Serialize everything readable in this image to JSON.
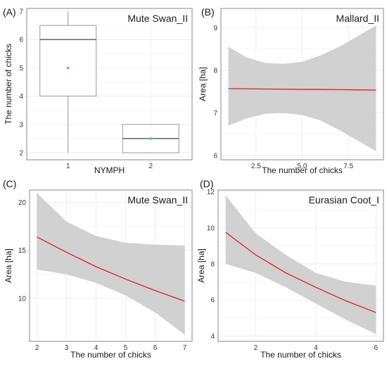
{
  "chart_data": [
    {
      "panel": "(A)",
      "type": "box",
      "title": "Mute Swan_II",
      "xlabel": "NYMPH",
      "ylabel": "The number of chicks",
      "categories": [
        "1",
        "2"
      ],
      "ylim": [
        1.75,
        7.1
      ],
      "yticks": [
        2,
        3,
        4,
        5,
        6,
        7
      ],
      "boxes": [
        {
          "category": "1",
          "min": 2,
          "q1": 4,
          "median": 6,
          "q3": 6.5,
          "max": 7,
          "mean": 5
        },
        {
          "category": "2",
          "min": 2,
          "q1": 2,
          "median": 2.5,
          "q3": 3,
          "max": 3,
          "mean": 2.5
        }
      ],
      "colors": {
        "mean": "#33e633",
        "box": "#999999"
      }
    },
    {
      "panel": "(B)",
      "type": "line",
      "title": "Mallard_II",
      "xlabel": "The number of chicks",
      "ylabel": "Area [ha]",
      "xlim": [
        0.6,
        9.4
      ],
      "ylim": [
        5.9,
        9.45
      ],
      "xticks": [
        2.5,
        5.0,
        7.5
      ],
      "xtick_labels": [
        "2.5",
        "5.0",
        "7.5"
      ],
      "yticks": [
        6,
        7,
        8,
        9
      ],
      "series": [
        {
          "x": [
            1,
            2,
            3,
            4,
            5,
            6,
            7,
            8,
            9
          ],
          "values": [
            7.57,
            7.565,
            7.56,
            7.555,
            7.55,
            7.55,
            7.545,
            7.54,
            7.535
          ],
          "lower": [
            6.7,
            6.87,
            6.98,
            7.0,
            6.95,
            6.82,
            6.6,
            6.35,
            6.1
          ],
          "upper": [
            8.55,
            8.3,
            8.17,
            8.15,
            8.2,
            8.35,
            8.55,
            8.8,
            9.05
          ]
        }
      ],
      "colors": {
        "line": "#e31a1c",
        "band": "#c9c9c9"
      }
    },
    {
      "panel": "(C)",
      "type": "line",
      "title": "Mute Swan_II",
      "xlabel": "The number of chicks",
      "ylabel": "Area [ha]",
      "xlim": [
        1.75,
        7.25
      ],
      "ylim": [
        5.5,
        21.3
      ],
      "xticks": [
        2,
        3,
        4,
        5,
        6,
        7
      ],
      "xtick_labels": [
        "2",
        "3",
        "4",
        "5",
        "6",
        "7"
      ],
      "yticks": [
        10,
        15,
        20
      ],
      "series": [
        {
          "x": [
            2,
            3,
            4,
            5,
            6,
            7
          ],
          "values": [
            16.4,
            14.8,
            13.3,
            12.0,
            10.8,
            9.7
          ],
          "lower": [
            13.0,
            12.5,
            11.6,
            10.3,
            8.5,
            6.2
          ],
          "upper": [
            21.0,
            18.0,
            16.5,
            15.8,
            15.6,
            15.5
          ]
        }
      ],
      "colors": {
        "line": "#e31a1c",
        "band": "#c9c9c9"
      }
    },
    {
      "panel": "(D)",
      "type": "line",
      "title": "Eurasian Coot_I",
      "xlabel": "The number of chicks",
      "ylabel": "Area [ha]",
      "xlim": [
        0.75,
        6.25
      ],
      "ylim": [
        3.7,
        12.1
      ],
      "xticks": [
        2,
        4,
        6
      ],
      "xtick_labels": [
        "2",
        "4",
        "6"
      ],
      "yticks": [
        4,
        6,
        8,
        10,
        12
      ],
      "series": [
        {
          "x": [
            1,
            2,
            3,
            4,
            5,
            6
          ],
          "values": [
            9.75,
            8.5,
            7.5,
            6.7,
            5.95,
            5.3
          ],
          "lower": [
            8.0,
            7.5,
            6.7,
            5.8,
            4.9,
            4.1
          ],
          "upper": [
            11.8,
            9.7,
            8.5,
            7.5,
            7.0,
            6.8
          ]
        }
      ],
      "colors": {
        "line": "#e31a1c",
        "band": "#c9c9c9"
      }
    }
  ]
}
